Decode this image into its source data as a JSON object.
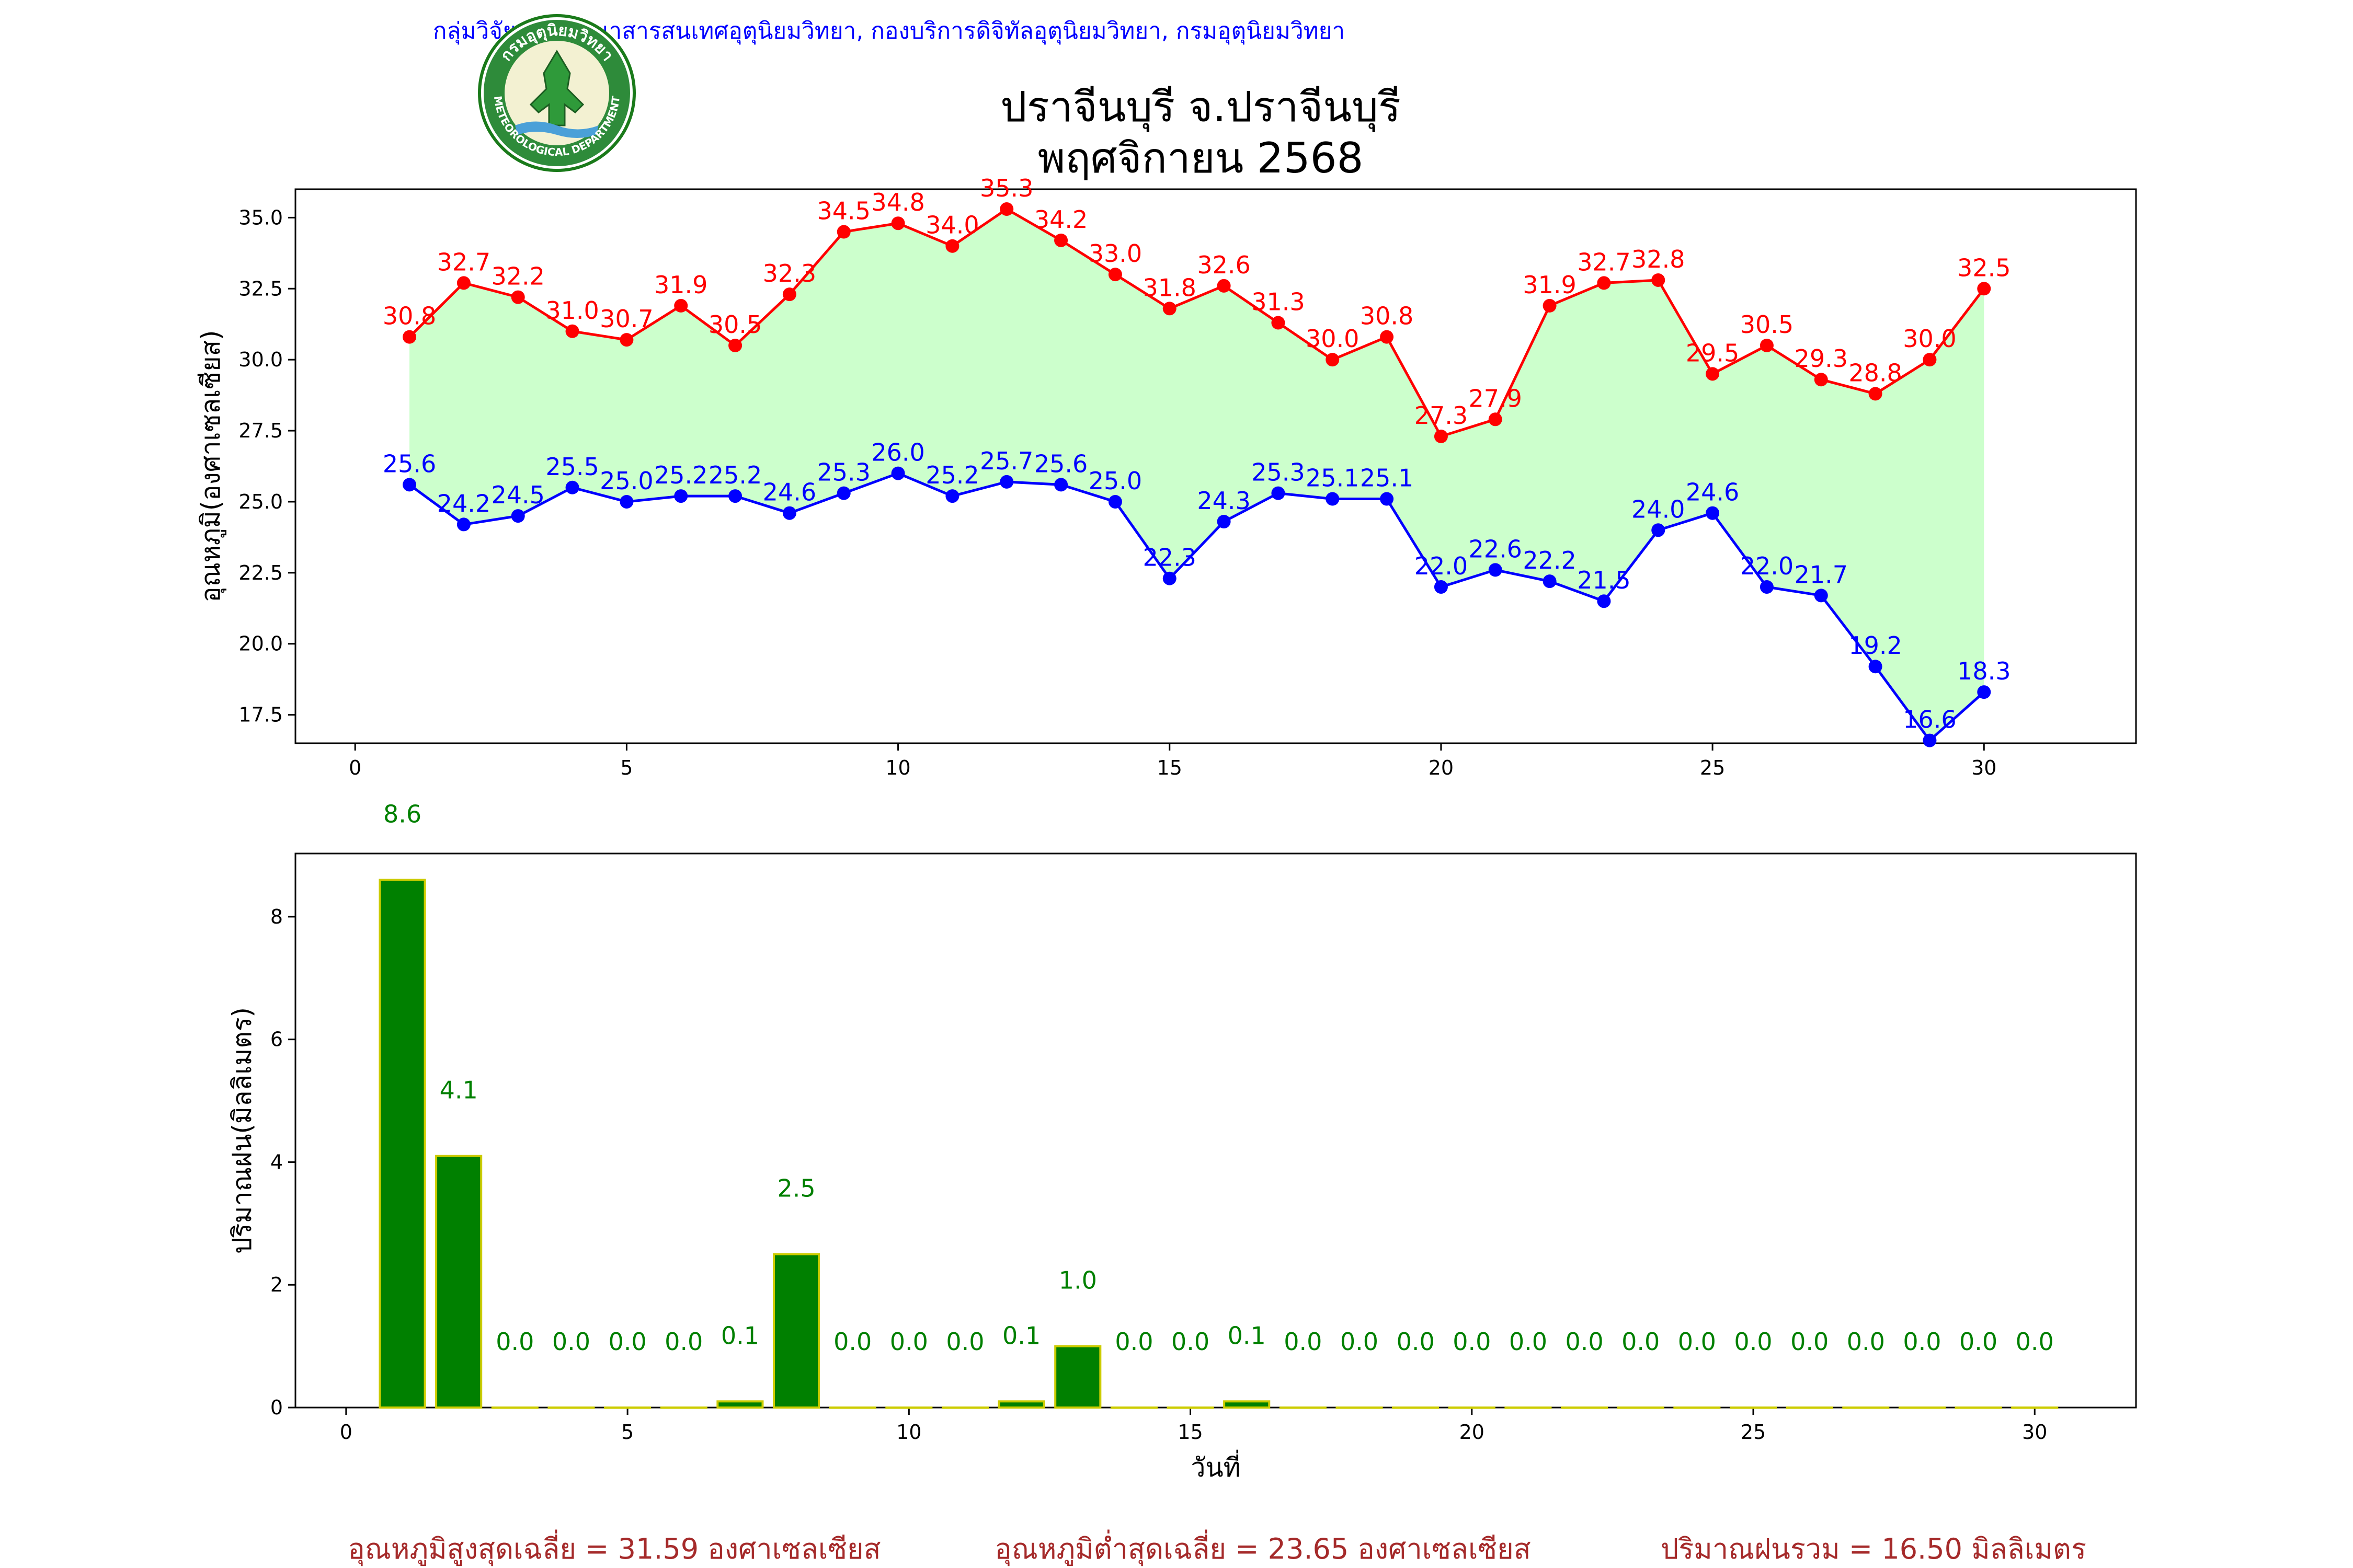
{
  "header": {
    "agency": "กลุ่มวิจัยและพัฒนาสารสนเทศอุตุนิยมวิทยา, กองบริการดิจิทัลอุตุนิยมวิทยา, กรมอุตุนิยมวิทยา",
    "title_line1": "ปราจีนบุรี จ.ปราจีนบุรี",
    "title_line2": "พฤศจิกายน 2568",
    "logo_top_text": "กรมอุตุนิยมวิทยา",
    "logo_bottom_text": "METEOROLOGICAL DEPARTMENT"
  },
  "colors": {
    "max": "#ff0000",
    "min": "#0000ff",
    "fill": "#ccffcc",
    "rain": "#008000",
    "rain_edge": "#cccc00",
    "summary": "#a52a2a",
    "agency": "#0000ff"
  },
  "chart_data": [
    {
      "type": "line",
      "ylabel": "อุณหภูมิ(องศาเซลเซียส)",
      "xlim": [
        -1.1,
        32.8
      ],
      "ylim": [
        16.5,
        36.0
      ],
      "xticks": [
        0,
        5,
        10,
        15,
        20,
        25,
        30
      ],
      "yticks": [
        17.5,
        20.0,
        22.5,
        25.0,
        27.5,
        30.0,
        32.5,
        35.0
      ],
      "x": [
        1,
        2,
        3,
        4,
        5,
        6,
        7,
        8,
        9,
        10,
        11,
        12,
        13,
        14,
        15,
        16,
        17,
        18,
        19,
        20,
        21,
        22,
        23,
        24,
        25,
        26,
        27,
        28,
        29,
        30
      ],
      "series": [
        {
          "name": "max",
          "values": [
            30.8,
            32.7,
            32.2,
            31.0,
            30.7,
            31.9,
            30.5,
            32.3,
            34.5,
            34.8,
            34.0,
            35.3,
            34.2,
            33.0,
            31.8,
            32.6,
            31.3,
            30.0,
            30.8,
            27.3,
            27.9,
            31.9,
            32.7,
            32.8,
            29.5,
            30.5,
            29.3,
            28.8,
            30.0,
            32.5
          ]
        },
        {
          "name": "min",
          "values": [
            25.6,
            24.2,
            24.5,
            25.5,
            25.0,
            25.2,
            25.2,
            24.6,
            25.3,
            26.0,
            25.2,
            25.7,
            25.6,
            25.0,
            22.3,
            24.3,
            25.3,
            25.1,
            25.1,
            22.0,
            22.6,
            22.2,
            21.5,
            24.0,
            24.6,
            22.0,
            21.7,
            19.2,
            16.6,
            18.3
          ]
        }
      ]
    },
    {
      "type": "bar",
      "xlabel": "วันที่",
      "ylabel": "ปริมาณฝน(มิลลิเมตร)",
      "xlim": [
        -0.9,
        31.8
      ],
      "ylim": [
        0,
        9.03
      ],
      "xticks": [
        0,
        5,
        10,
        15,
        20,
        25,
        30
      ],
      "yticks": [
        0,
        2,
        4,
        6,
        8
      ],
      "x": [
        1,
        2,
        3,
        4,
        5,
        6,
        7,
        8,
        9,
        10,
        11,
        12,
        13,
        14,
        15,
        16,
        17,
        18,
        19,
        20,
        21,
        22,
        23,
        24,
        25,
        26,
        27,
        28,
        29,
        30
      ],
      "values": [
        8.6,
        4.1,
        0.0,
        0.0,
        0.0,
        0.0,
        0.1,
        2.5,
        0.0,
        0.0,
        0.0,
        0.1,
        1.0,
        0.0,
        0.0,
        0.1,
        0.0,
        0.0,
        0.0,
        0.0,
        0.0,
        0.0,
        0.0,
        0.0,
        0.0,
        0.0,
        0.0,
        0.0,
        0.0,
        0.0
      ]
    }
  ],
  "summary": {
    "avg_max": "อุณหภูมิสูงสุดเฉลี่ย = 31.59 องศาเซลเซียส",
    "avg_min": "อุณหภูมิต่ำสุดเฉลี่ย = 23.65 องศาเซลเซียส",
    "total_rain": "ปริมาณฝนรวม = 16.50 มิลลิเมตร"
  }
}
